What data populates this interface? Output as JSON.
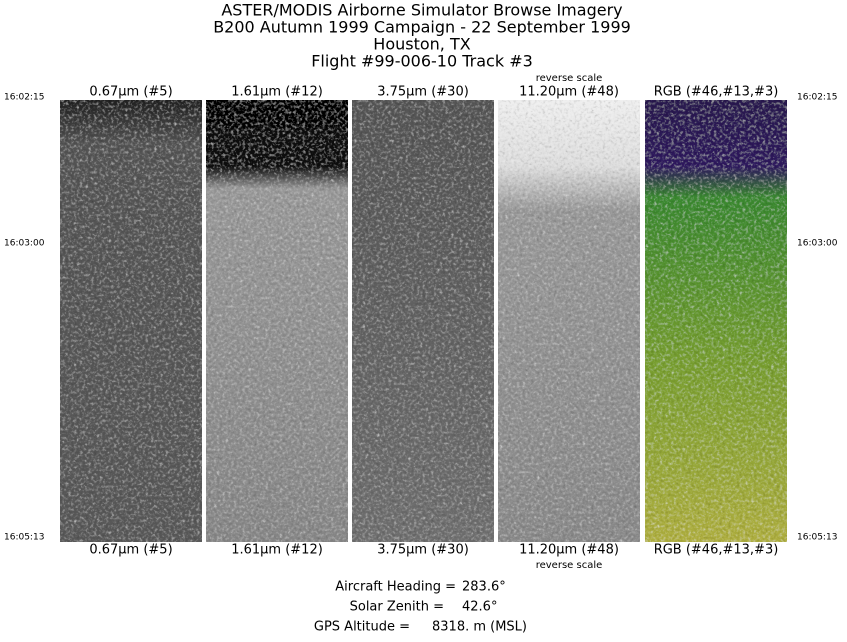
{
  "header": {
    "lines": [
      "ASTER/MODIS Airborne Simulator Browse Imagery",
      "B200 Autumn 1999 Campaign - 22 September 1999",
      "Houston, TX",
      "Flight #99-006-10 Track #3"
    ]
  },
  "panels": [
    {
      "top_label": "0.67μm (#5)",
      "bottom_label": "0.67μm (#5)"
    },
    {
      "top_label": "1.61μm (#12)",
      "bottom_label": "1.61μm (#12)"
    },
    {
      "top_label": "3.75μm (#30)",
      "bottom_label": "3.75μm (#30)"
    },
    {
      "top_label": "11.20μm (#48)",
      "bottom_label": "11.20μm (#48)",
      "note": "reverse scale"
    },
    {
      "top_label": "RGB (#46,#13,#3)",
      "bottom_label": "RGB (#46,#13,#3)"
    }
  ],
  "times": [
    "16:02:15",
    "16:03:00",
    "16:05:13"
  ],
  "footer": [
    {
      "label": "Aircraft Heading =",
      "value": "283.6°"
    },
    {
      "label": "Solar Zenith =",
      "value": "42.6°"
    },
    {
      "label": "GPS Altitude =",
      "value": "8318. m (MSL)"
    }
  ]
}
